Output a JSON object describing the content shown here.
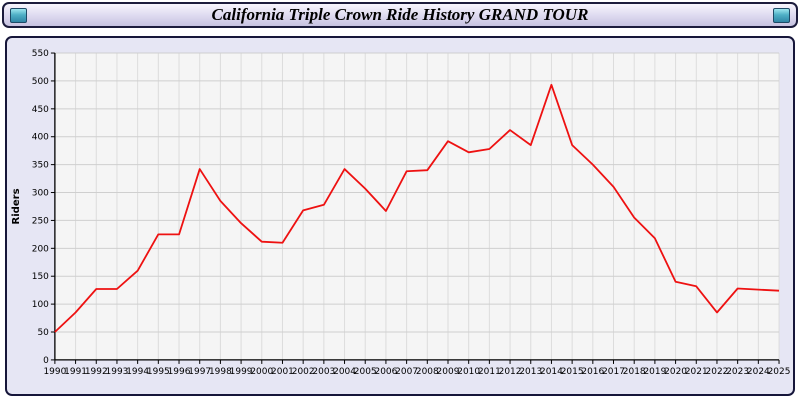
{
  "window": {
    "title": "California Triple Crown Ride History GRAND TOUR"
  },
  "chart_data": {
    "type": "line",
    "title": "California Triple Crown Ride History GRAND TOUR",
    "xlabel": "",
    "ylabel": "Riders",
    "ylim": [
      0,
      550
    ],
    "ytick_step": 50,
    "grid": true,
    "legend_position": "none",
    "line_color": "#ee1111",
    "plot_bg": "#f5f5f5",
    "panel_bg": "#e6e6f4",
    "categories": [
      "1990",
      "1991",
      "1992",
      "1993",
      "1994",
      "1995",
      "1996",
      "1997",
      "1998",
      "1999",
      "2000",
      "2001",
      "2002",
      "2003",
      "2004",
      "2005",
      "2006",
      "2007",
      "2008",
      "2009",
      "2010",
      "2011",
      "2012",
      "2013",
      "2014",
      "2015",
      "2016",
      "2017",
      "2018",
      "2019",
      "2020",
      "2021",
      "2022",
      "2023",
      "2024",
      "2025"
    ],
    "values": [
      50,
      85,
      127,
      127,
      160,
      225,
      225,
      342,
      285,
      245,
      212,
      210,
      268,
      278,
      342,
      307,
      267,
      338,
      340,
      392,
      372,
      378,
      412,
      385,
      493,
      385,
      350,
      310,
      255,
      218,
      140,
      132,
      85,
      128,
      126,
      124
    ]
  }
}
